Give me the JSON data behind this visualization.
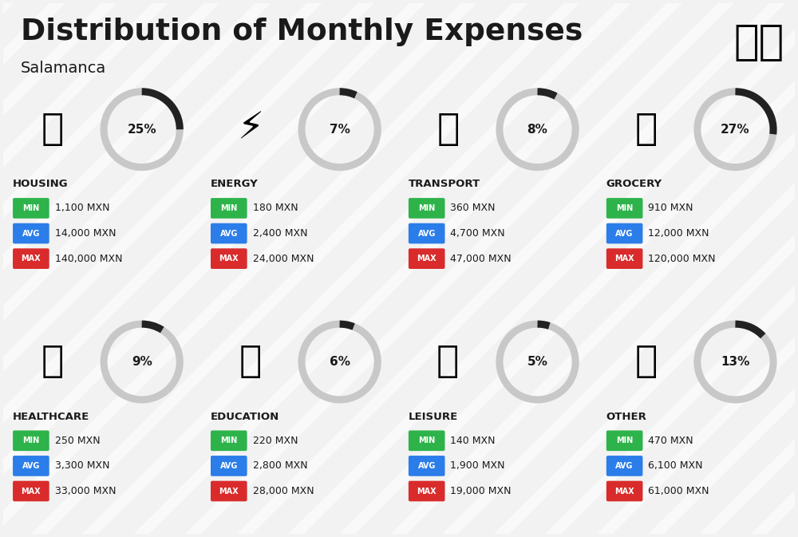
{
  "title": "Distribution of Monthly Expenses",
  "subtitle": "Salamanca",
  "background_color": "#f2f2f2",
  "categories": [
    {
      "name": "HOUSING",
      "pct": 25,
      "min": "1,100 MXN",
      "avg": "14,000 MXN",
      "max": "140,000 MXN",
      "row": 0,
      "col": 0
    },
    {
      "name": "ENERGY",
      "pct": 7,
      "min": "180 MXN",
      "avg": "2,400 MXN",
      "max": "24,000 MXN",
      "row": 0,
      "col": 1
    },
    {
      "name": "TRANSPORT",
      "pct": 8,
      "min": "360 MXN",
      "avg": "4,700 MXN",
      "max": "47,000 MXN",
      "row": 0,
      "col": 2
    },
    {
      "name": "GROCERY",
      "pct": 27,
      "min": "910 MXN",
      "avg": "12,000 MXN",
      "max": "120,000 MXN",
      "row": 0,
      "col": 3
    },
    {
      "name": "HEALTHCARE",
      "pct": 9,
      "min": "250 MXN",
      "avg": "3,300 MXN",
      "max": "33,000 MXN",
      "row": 1,
      "col": 0
    },
    {
      "name": "EDUCATION",
      "pct": 6,
      "min": "220 MXN",
      "avg": "2,800 MXN",
      "max": "28,000 MXN",
      "row": 1,
      "col": 1
    },
    {
      "name": "LEISURE",
      "pct": 5,
      "min": "140 MXN",
      "avg": "1,900 MXN",
      "max": "19,000 MXN",
      "row": 1,
      "col": 2
    },
    {
      "name": "OTHER",
      "pct": 13,
      "min": "470 MXN",
      "avg": "6,100 MXN",
      "max": "61,000 MXN",
      "row": 1,
      "col": 3
    }
  ],
  "min_color": "#2db34a",
  "avg_color": "#2b7de9",
  "max_color": "#d92b2b",
  "text_color": "#1a1a1a",
  "donut_bg": "#c8c8c8",
  "donut_fg": "#222222",
  "stripe_color": "#ffffff",
  "flag_green": "#4caf26",
  "flag_white": "#f5f5f5",
  "flag_red": "#f0556a"
}
